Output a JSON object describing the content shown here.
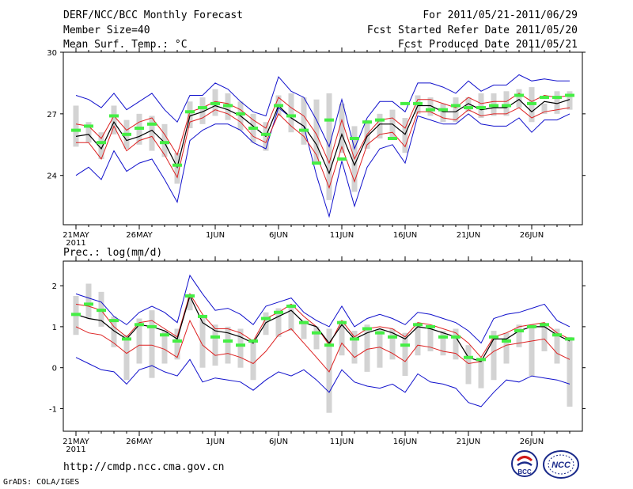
{
  "header": {
    "title": "DERF/NCC/BCC Monthly Forecast",
    "member": "Member Size=40",
    "variable": "Mean Surf. Temp.: °C",
    "period": "For 2011/05/21-2011/06/29",
    "started": "Fcst Started Refer Date 2011/05/20",
    "produced": "Fcst Produced Date 2011/05/21"
  },
  "footer": {
    "url": "http://cmdp.ncc.cma.gov.cn",
    "grads": "GrADS: COLA/IGES",
    "logo1_text": "BCC",
    "logo2_text": "NCC"
  },
  "colors": {
    "bar": "#d3d3d3",
    "obs": "#44ee44",
    "mean": "#000000",
    "band": "#dd2222",
    "envelope": "#1111cc"
  },
  "chart_data": [
    {
      "type": "line",
      "title": "Mean Surf. Temp.: °C",
      "x_tick_labels": [
        "21MAY",
        "26MAY",
        "1JUN",
        "6JUN",
        "11JUN",
        "16JUN",
        "21JUN",
        "26JUN"
      ],
      "x_tick_index": [
        0,
        5,
        11,
        16,
        21,
        26,
        31,
        36
      ],
      "year_label": "2011",
      "ylim": [
        21.6,
        30
      ],
      "yticks": [
        24,
        27,
        30
      ],
      "series": [
        {
          "name": "max",
          "values": [
            24.0,
            24.4,
            23.8,
            25.2,
            24.2,
            24.6,
            24.8,
            23.8,
            22.7,
            25.7,
            26.2,
            26.5,
            26.5,
            26.2,
            25.6,
            25.3,
            27.3,
            26.8,
            26.4,
            24.0,
            22.0,
            24.7,
            22.5,
            24.4,
            25.3,
            25.5,
            24.6,
            26.9,
            26.7,
            26.5,
            26.5,
            27.0,
            26.5,
            26.4,
            26.4,
            26.8,
            26.1,
            26.7,
            26.7,
            27.0
          ]
        },
        {
          "name": "min",
          "values": [
            27.9,
            27.7,
            27.3,
            28.0,
            27.2,
            27.6,
            28.0,
            27.2,
            26.6,
            27.9,
            27.9,
            28.5,
            28.2,
            27.6,
            27.1,
            26.9,
            28.8,
            28.1,
            27.8,
            26.7,
            25.4,
            27.7,
            25.3,
            26.8,
            27.6,
            27.6,
            27.1,
            28.5,
            28.5,
            28.3,
            28.0,
            28.6,
            28.1,
            28.4,
            28.4,
            28.9,
            28.6,
            28.7,
            28.6,
            28.6
          ]
        },
        {
          "name": "p_low",
          "values": [
            25.6,
            25.6,
            24.8,
            26.4,
            25.2,
            25.7,
            25.9,
            25.0,
            23.9,
            26.6,
            26.8,
            27.2,
            27.0,
            26.6,
            25.9,
            25.6,
            27.0,
            26.4,
            25.9,
            25.0,
            23.4,
            25.4,
            23.7,
            25.5,
            26.0,
            26.1,
            25.4,
            27.1,
            27.1,
            26.8,
            26.7,
            27.2,
            26.9,
            27.0,
            27.0,
            27.3,
            26.8,
            27.1,
            27.2,
            27.3
          ]
        },
        {
          "name": "p_high",
          "values": [
            26.5,
            26.4,
            25.8,
            26.9,
            26.2,
            26.6,
            26.8,
            26.0,
            25.0,
            27.1,
            27.3,
            27.6,
            27.5,
            27.2,
            26.7,
            26.3,
            27.8,
            27.3,
            26.9,
            26.0,
            24.6,
            26.7,
            24.8,
            26.0,
            26.7,
            26.8,
            26.3,
            27.7,
            27.7,
            27.5,
            27.3,
            27.8,
            27.5,
            27.6,
            27.6,
            28.0,
            27.6,
            27.9,
            27.8,
            27.9
          ]
        },
        {
          "name": "mean",
          "values": [
            25.9,
            26.0,
            25.3,
            26.6,
            25.7,
            25.9,
            26.2,
            25.6,
            24.4,
            26.9,
            27.1,
            27.4,
            27.2,
            26.9,
            26.4,
            25.9,
            27.4,
            26.8,
            26.4,
            25.5,
            24.1,
            26.0,
            24.5,
            25.9,
            26.5,
            26.5,
            26.0,
            27.4,
            27.4,
            27.1,
            27.1,
            27.5,
            27.2,
            27.3,
            27.3,
            27.7,
            27.1,
            27.6,
            27.5,
            27.7
          ]
        },
        {
          "name": "bar_low",
          "values": [
            25.4,
            25.6,
            24.8,
            26.0,
            25.3,
            25.5,
            25.2,
            24.9,
            23.6,
            26.3,
            26.5,
            26.9,
            26.7,
            26.2,
            25.6,
            25.2,
            26.9,
            26.1,
            25.5,
            24.6,
            22.8,
            25.1,
            23.2,
            25.3,
            25.8,
            25.8,
            25.1,
            27.0,
            26.9,
            26.6,
            26.6,
            27.1,
            26.8,
            26.9,
            26.9,
            27.3,
            26.6,
            27.0,
            27.0,
            27.2
          ]
        },
        {
          "name": "bar_high",
          "values": [
            27.4,
            26.6,
            26.1,
            27.4,
            26.7,
            27.0,
            26.9,
            26.5,
            25.1,
            27.6,
            27.8,
            28.2,
            28.0,
            27.6,
            27.0,
            26.6,
            27.9,
            28.0,
            27.8,
            27.7,
            28.0,
            27.5,
            26.4,
            26.7,
            27.0,
            27.2,
            26.8,
            27.9,
            27.8,
            27.5,
            27.8,
            27.8,
            28.0,
            28.0,
            28.1,
            28.2,
            28.3,
            27.5,
            28.1,
            28.1
          ]
        },
        {
          "name": "obs",
          "values": [
            26.2,
            26.4,
            25.6,
            26.9,
            26.0,
            26.3,
            26.5,
            25.6,
            24.5,
            27.1,
            27.3,
            27.5,
            27.4,
            27.0,
            26.3,
            26.0,
            27.4,
            26.9,
            26.2,
            24.6,
            26.7,
            24.8,
            25.8,
            26.6,
            26.7,
            25.8,
            27.5,
            27.5,
            27.2,
            27.2,
            27.4,
            27.3,
            27.3,
            27.4,
            27.4,
            27.9,
            27.5,
            27.8,
            27.8,
            27.9
          ]
        }
      ]
    },
    {
      "type": "line",
      "title": "Prec.: log(mm/d)",
      "x_tick_labels": [
        "21MAY",
        "26MAY",
        "1JUN",
        "6JUN",
        "11JUN",
        "16JUN",
        "21JUN",
        "26JUN"
      ],
      "x_tick_index": [
        0,
        5,
        11,
        16,
        21,
        26,
        31,
        36
      ],
      "year_label": "2011",
      "ylim": [
        -1.55,
        2.6
      ],
      "yticks": [
        -1,
        0,
        1,
        2
      ],
      "series": [
        {
          "name": "min",
          "values": [
            0.25,
            0.1,
            -0.05,
            -0.1,
            -0.4,
            -0.05,
            0.05,
            -0.1,
            -0.2,
            0.2,
            -0.35,
            -0.25,
            -0.3,
            -0.35,
            -0.55,
            -0.3,
            -0.1,
            -0.2,
            -0.05,
            -0.3,
            -0.6,
            -0.05,
            -0.35,
            -0.45,
            -0.5,
            -0.4,
            -0.6,
            -0.15,
            -0.35,
            -0.4,
            -0.5,
            -0.85,
            -0.95,
            -0.6,
            -0.3,
            -0.35,
            -0.2,
            -0.25,
            -0.3,
            -0.4
          ]
        },
        {
          "name": "max",
          "values": [
            1.8,
            1.7,
            1.6,
            1.25,
            1.05,
            1.35,
            1.5,
            1.35,
            1.1,
            2.25,
            1.8,
            1.4,
            1.45,
            1.3,
            1.05,
            1.5,
            1.6,
            1.7,
            1.35,
            1.15,
            1.0,
            1.5,
            1.0,
            1.2,
            1.3,
            1.2,
            1.05,
            1.35,
            1.3,
            1.2,
            1.1,
            0.9,
            0.6,
            1.2,
            1.3,
            1.35,
            1.45,
            1.55,
            1.15,
            1.0
          ]
        },
        {
          "name": "p_low",
          "values": [
            1.0,
            0.85,
            0.8,
            0.6,
            0.35,
            0.55,
            0.55,
            0.45,
            0.25,
            1.15,
            0.55,
            0.3,
            0.35,
            0.25,
            0.1,
            0.4,
            0.8,
            0.95,
            0.6,
            0.25,
            -0.1,
            0.6,
            0.25,
            0.45,
            0.5,
            0.35,
            0.15,
            0.55,
            0.5,
            0.4,
            0.35,
            0.1,
            0.15,
            0.4,
            0.55,
            0.6,
            0.65,
            0.7,
            0.35,
            0.2
          ]
        },
        {
          "name": "p_high",
          "values": [
            1.55,
            1.5,
            1.4,
            1.0,
            0.75,
            1.1,
            1.15,
            0.95,
            0.75,
            1.8,
            1.3,
            0.95,
            0.95,
            0.85,
            0.65,
            1.2,
            1.35,
            1.55,
            1.25,
            1.0,
            0.55,
            1.15,
            0.75,
            0.95,
            1.0,
            0.95,
            0.75,
            1.1,
            1.05,
            0.95,
            0.85,
            0.6,
            0.25,
            0.75,
            0.85,
            1.0,
            1.05,
            1.1,
            0.85,
            0.7
          ]
        },
        {
          "name": "mean",
          "values": [
            1.3,
            1.2,
            1.15,
            0.9,
            0.7,
            1.05,
            1.0,
            0.9,
            0.7,
            1.75,
            1.1,
            0.9,
            0.85,
            0.75,
            0.6,
            1.1,
            1.25,
            1.4,
            1.1,
            1.0,
            0.6,
            1.05,
            0.7,
            0.85,
            0.95,
            0.85,
            0.7,
            1.0,
            0.95,
            0.85,
            0.75,
            0.25,
            0.15,
            0.7,
            0.7,
            0.9,
            1.0,
            1.0,
            0.8,
            0.65
          ]
        },
        {
          "name": "bar_low",
          "values": [
            0.8,
            1.2,
            1.0,
            0.5,
            -0.3,
            0.1,
            -0.25,
            0.1,
            0.2,
            1.4,
            0.0,
            0.05,
            0.1,
            0.0,
            -0.3,
            0.8,
            0.75,
            0.9,
            0.7,
            0.45,
            -1.1,
            0.3,
            0.1,
            -0.1,
            0.0,
            0.2,
            -0.2,
            0.3,
            0.4,
            0.3,
            0.2,
            -0.4,
            -0.5,
            -0.3,
            0.1,
            0.5,
            -0.2,
            0.4,
            0.1,
            -0.95
          ]
        },
        {
          "name": "bar_high",
          "values": [
            1.75,
            2.05,
            1.85,
            1.25,
            0.8,
            1.2,
            1.4,
            0.9,
            0.95,
            1.8,
            1.25,
            1.05,
            1.0,
            0.95,
            0.65,
            1.35,
            1.45,
            1.55,
            1.15,
            1.0,
            0.95,
            1.15,
            0.9,
            1.05,
            0.95,
            0.95,
            0.85,
            1.1,
            1.0,
            0.9,
            0.95,
            0.55,
            0.2,
            0.9,
            0.85,
            1.05,
            1.05,
            1.05,
            0.95,
            0.75
          ]
        },
        {
          "name": "obs",
          "values": [
            1.3,
            1.55,
            1.4,
            1.15,
            0.7,
            1.05,
            1.0,
            0.8,
            0.65,
            1.75,
            1.25,
            0.75,
            0.65,
            0.55,
            0.65,
            1.2,
            1.35,
            1.5,
            1.1,
            0.85,
            0.55,
            1.1,
            0.7,
            0.95,
            0.85,
            0.75,
            0.55,
            1.05,
            1.0,
            0.75,
            0.75,
            0.25,
            0.2,
            0.75,
            0.65,
            0.9,
            1.0,
            1.05,
            0.8,
            0.7
          ]
        }
      ]
    }
  ]
}
